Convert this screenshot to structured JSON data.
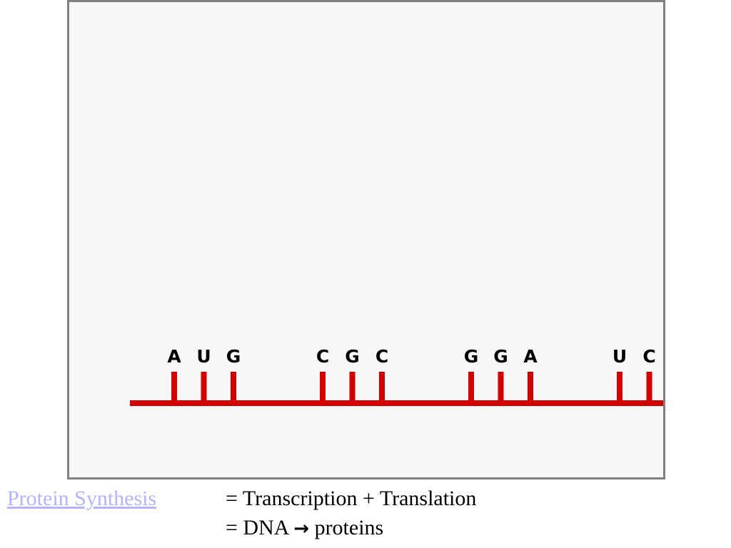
{
  "diagram": {
    "strand_color": "#d40000",
    "codons": [
      [
        "A",
        "U",
        "G"
      ],
      [
        "C",
        "G",
        "C"
      ],
      [
        "G",
        "G",
        "A"
      ],
      [
        "U",
        "C"
      ]
    ]
  },
  "link": {
    "label": "Protein Synthesis",
    "color": "#b3b3ff"
  },
  "equations": {
    "line1": "= Transcription + Translation",
    "line2_prefix": "= DNA",
    "line2_arrow": "→",
    "line2_suffix": "proteins"
  }
}
